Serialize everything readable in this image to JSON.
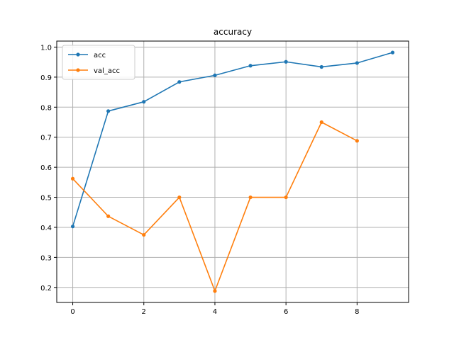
{
  "chart_data": {
    "type": "line",
    "title": "accuracy",
    "xlabel": "",
    "ylabel": "",
    "xlim": [
      -0.45,
      9.45
    ],
    "ylim": [
      0.15,
      1.02
    ],
    "xticks": [
      0,
      2,
      4,
      6,
      8
    ],
    "yticks": [
      0.2,
      0.3,
      0.4,
      0.5,
      0.6,
      0.7,
      0.8,
      0.9,
      1.0
    ],
    "grid": true,
    "legend_position": "top-left",
    "series": [
      {
        "name": "acc",
        "color": "#1f77b4",
        "marker": "dot",
        "x": [
          0,
          1,
          2,
          3,
          4,
          5,
          6,
          7,
          8,
          9
        ],
        "y": [
          0.403,
          0.787,
          0.818,
          0.884,
          0.906,
          0.938,
          0.951,
          0.934,
          0.947,
          0.982
        ]
      },
      {
        "name": "val_acc",
        "color": "#ff7f0e",
        "marker": "dot",
        "x": [
          0,
          1,
          2,
          3,
          4,
          5,
          6,
          7,
          8
        ],
        "y": [
          0.562,
          0.437,
          0.375,
          0.5,
          0.188,
          0.5,
          0.5,
          0.75,
          0.688
        ]
      }
    ]
  }
}
